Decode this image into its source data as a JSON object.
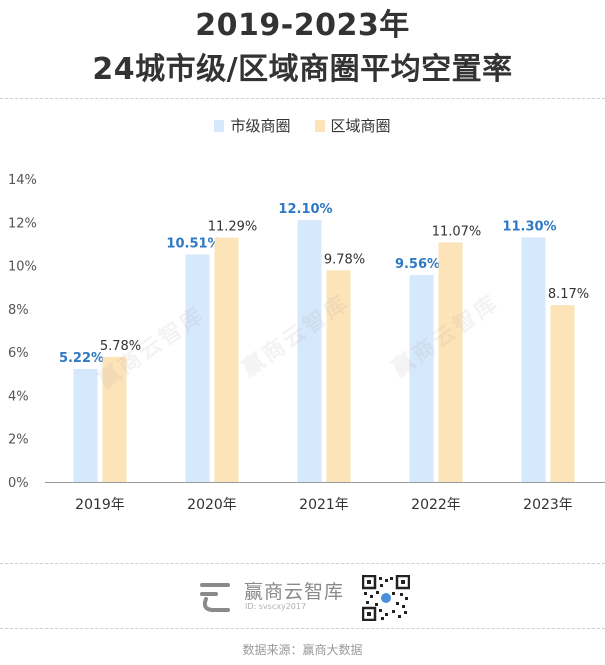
{
  "title": {
    "line1": "2019-2023年",
    "line2": "24城市级/区域商圈平均空置率"
  },
  "legend": [
    {
      "label": "市级商圈",
      "color": "#d6e8fb"
    },
    {
      "label": "区域商圈",
      "color": "#fde3b8"
    }
  ],
  "chart_data": {
    "type": "bar",
    "categories": [
      "2019年",
      "2020年",
      "2021年",
      "2022年",
      "2023年"
    ],
    "series": [
      {
        "name": "市级商圈",
        "values": [
          5.22,
          10.51,
          12.1,
          9.56,
          11.3
        ],
        "labels": [
          "5.22%",
          "10.51%",
          "12.10%",
          "9.56%",
          "11.30%"
        ],
        "color": "#d6e8fb",
        "label_color": "#2f78c4"
      },
      {
        "name": "区域商圈",
        "values": [
          5.78,
          11.29,
          9.78,
          11.07,
          8.17
        ],
        "labels": [
          "5.78%",
          "11.29%",
          "9.78%",
          "11.07%",
          "8.17%"
        ],
        "color": "#fde3b8",
        "label_color": "#333333"
      }
    ],
    "yticks": [
      "0%",
      "2%",
      "4%",
      "6%",
      "8%",
      "10%",
      "12%",
      "14%"
    ],
    "ylim": [
      0,
      14
    ],
    "grid": false,
    "legend_position": "top-center"
  },
  "footer": {
    "brand_name": "赢商云智库",
    "brand_id": "ID: svscxy2017",
    "watermark": "赢商云智库",
    "source": "数据来源：赢商大数据"
  }
}
